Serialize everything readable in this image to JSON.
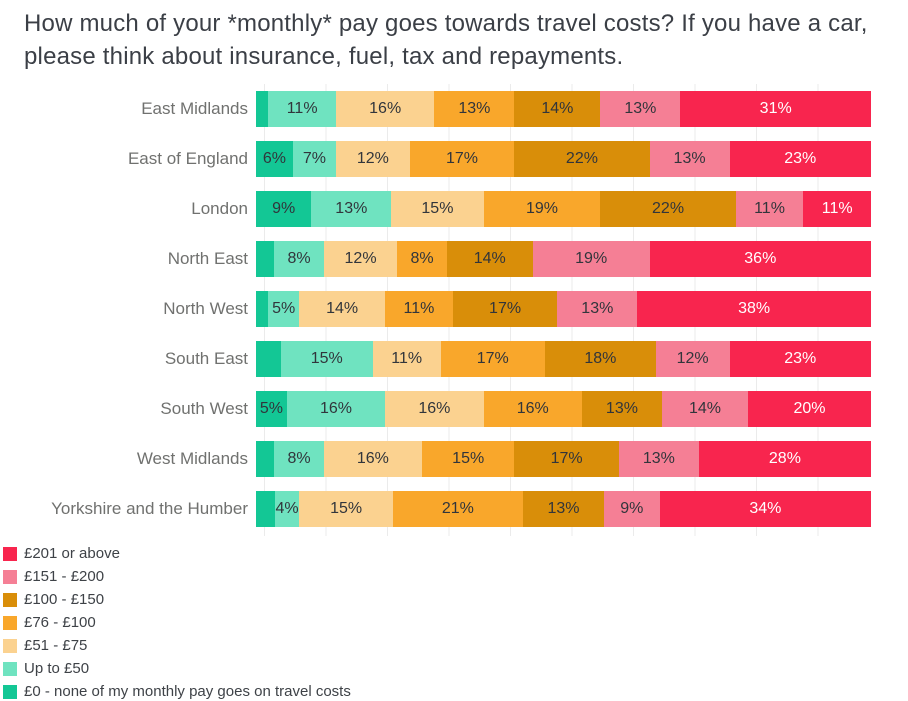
{
  "title": "How much of your *monthly* pay goes towards travel costs? If you have a car, please think about insurance, fuel, tax and repayments.",
  "chart_data": {
    "type": "bar",
    "orientation": "horizontal",
    "stacked": true,
    "unit": "percent",
    "x_axis": {
      "min": 0,
      "max": 100,
      "gridline_step": 10,
      "gridlines_visible": true,
      "tick_labels_visible": false
    },
    "legend_position": "bottom-left",
    "legend_order": "reversed",
    "categories": [
      "East Midlands",
      "East of England",
      "London",
      "North East",
      "North West",
      "South East",
      "South West",
      "West Midlands",
      "Yorkshire and the Humber"
    ],
    "series": [
      {
        "name": "£0 - none of my monthly pay goes on travel costs",
        "color": "#13c795",
        "label_color": "#31353b",
        "values": [
          2,
          6,
          9,
          3,
          2,
          4,
          5,
          3,
          3
        ],
        "labels": [
          "",
          "6%",
          "9%",
          "",
          "",
          "",
          "5%",
          "",
          ""
        ]
      },
      {
        "name": "Up to £50",
        "color": "#6fe3c0",
        "label_color": "#31353b",
        "values": [
          11,
          7,
          13,
          8,
          5,
          15,
          16,
          8,
          4
        ],
        "labels": [
          "11%",
          "7%",
          "13%",
          "8%",
          "5%",
          "15%",
          "16%",
          "8%",
          "4%"
        ]
      },
      {
        "name": "£51 - £75",
        "color": "#fbd290",
        "label_color": "#31353b",
        "values": [
          16,
          12,
          15,
          12,
          14,
          11,
          16,
          16,
          15
        ],
        "labels": [
          "16%",
          "12%",
          "15%",
          "12%",
          "14%",
          "11%",
          "16%",
          "16%",
          "15%"
        ]
      },
      {
        "name": "£76 - £100",
        "color": "#f9a72b",
        "label_color": "#31353b",
        "values": [
          13,
          17,
          19,
          8,
          11,
          17,
          16,
          15,
          21
        ],
        "labels": [
          "13%",
          "17%",
          "19%",
          "8%",
          "11%",
          "17%",
          "16%",
          "15%",
          "21%"
        ]
      },
      {
        "name": "£100 - £150",
        "color": "#d98e09",
        "label_color": "#31353b",
        "values": [
          14,
          22,
          22,
          14,
          17,
          18,
          13,
          17,
          13
        ],
        "labels": [
          "14%",
          "22%",
          "22%",
          "14%",
          "17%",
          "18%",
          "13%",
          "17%",
          "13%"
        ]
      },
      {
        "name": "£151 - £200",
        "color": "#f57f95",
        "label_color": "#31353b",
        "values": [
          13,
          13,
          11,
          19,
          13,
          12,
          14,
          13,
          9
        ],
        "labels": [
          "13%",
          "13%",
          "11%",
          "19%",
          "13%",
          "12%",
          "14%",
          "13%",
          "9%"
        ]
      },
      {
        "name": "£201 or above",
        "color": "#f8254e",
        "label_color": "#ffffff",
        "values": [
          31,
          23,
          11,
          36,
          38,
          23,
          20,
          28,
          34
        ],
        "labels": [
          "31%",
          "23%",
          "11%",
          "36%",
          "38%",
          "23%",
          "20%",
          "28%",
          "34%"
        ]
      }
    ]
  }
}
